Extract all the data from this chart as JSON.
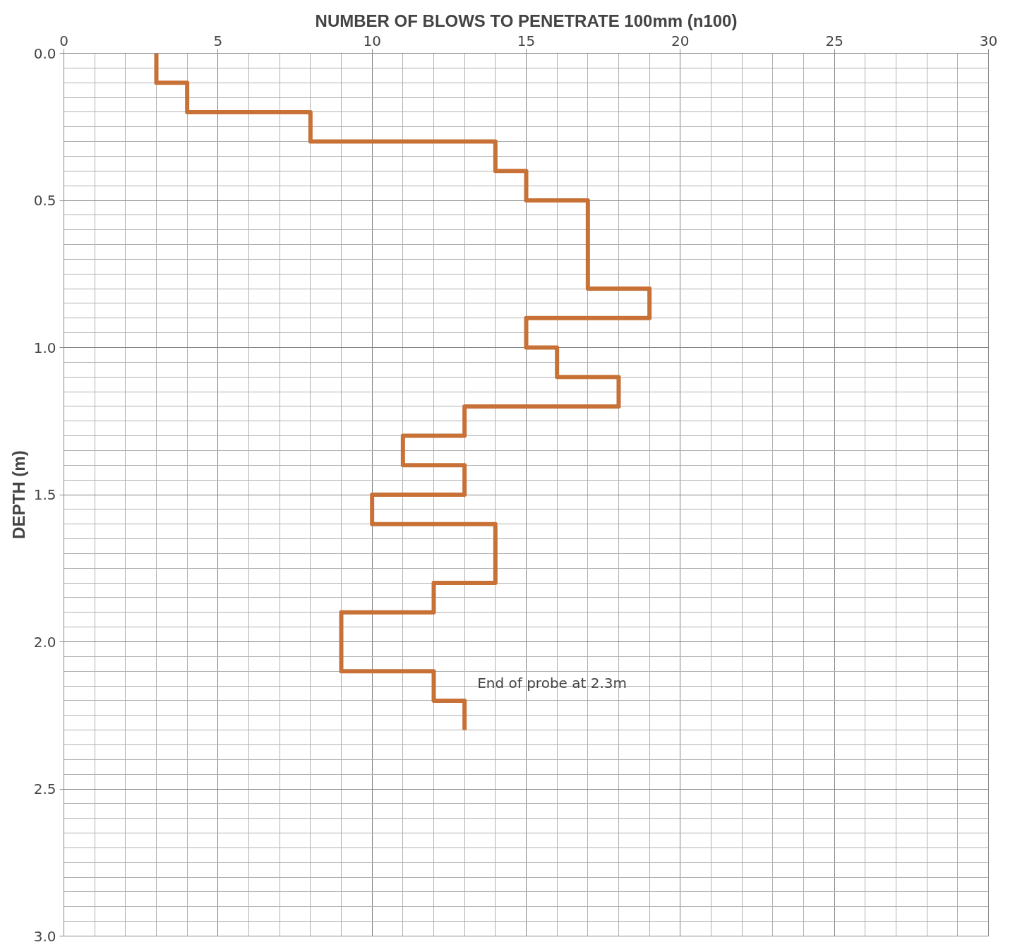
{
  "chart_data": {
    "type": "line",
    "xlabel": "NUMBER OF BLOWS TO PENETRATE 100mm (n100)",
    "ylabel": "DEPTH (m)",
    "xlim": [
      0,
      30
    ],
    "xticks": [
      0,
      5,
      10,
      15,
      20,
      25,
      30
    ],
    "ylim": [
      3.0,
      0
    ],
    "yticks": [
      {
        "value": 0,
        "label": "0.0"
      },
      {
        "value": 0.5,
        "label": "0.5"
      },
      {
        "value": 1.0,
        "label": "1.0"
      },
      {
        "value": 1.5,
        "label": "1.5"
      },
      {
        "value": 2.0,
        "label": "2.0"
      },
      {
        "value": 2.5,
        "label": "2.5"
      },
      {
        "value": 3.0,
        "label": "3.0"
      }
    ],
    "grid": true,
    "marker": "none",
    "line_style": "solid",
    "series": [
      {
        "color": "#c87137",
        "x": [
          3,
          3,
          4,
          4,
          8,
          8,
          14,
          14,
          15,
          15,
          17,
          17,
          19,
          19,
          15,
          15,
          16,
          16,
          18,
          18,
          13,
          13,
          11,
          11,
          13,
          13,
          10,
          10,
          14,
          14,
          12,
          12,
          9,
          9,
          12,
          12,
          13,
          13
        ],
        "values": [
          0,
          0.1,
          0.1,
          0.2,
          0.2,
          0.3,
          0.3,
          0.4,
          0.4,
          0.5,
          0.5,
          0.8,
          0.8,
          0.9,
          0.9,
          1.0,
          1.0,
          1.1,
          1.1,
          1.2,
          1.2,
          1.3,
          1.3,
          1.4,
          1.4,
          1.5,
          1.5,
          1.6,
          1.6,
          1.8,
          1.8,
          1.9,
          1.9,
          2.1,
          2.1,
          2.2,
          2.2,
          2.3
        ]
      }
    ],
    "annotations": [
      "End of probe at 2.3m"
    ]
  }
}
